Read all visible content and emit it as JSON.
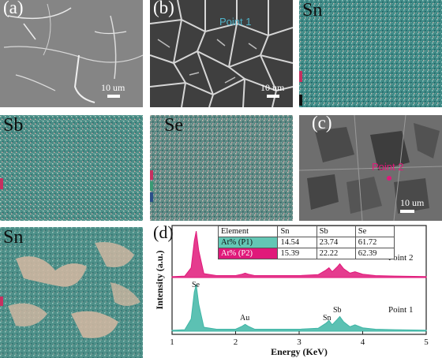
{
  "panels": {
    "a": {
      "label": "(a)",
      "scale": "10 um"
    },
    "b": {
      "label": "(b)",
      "scale": "10 um",
      "point_label": "Point 1"
    },
    "sn_top": {
      "label": "Sn"
    },
    "sb": {
      "label": "Sb"
    },
    "se": {
      "label": "Se"
    },
    "c": {
      "label": "(c)",
      "scale": "10 um",
      "point_label": "Point 2"
    },
    "sn_bottom": {
      "label": "Sn"
    }
  },
  "table": {
    "headers": [
      "Element",
      "Sn",
      "Sb",
      "Se"
    ],
    "rows": [
      {
        "name": "At% (P1)",
        "values": [
          "14.54",
          "23.74",
          "61.72"
        ]
      },
      {
        "name": "At% (P2)",
        "values": [
          "15.39",
          "22.22",
          "62.39"
        ]
      }
    ]
  },
  "colors": {
    "map_base": "#3f8a86",
    "map_sn_bottom_base": "#4d8f88",
    "point1": "#3fb6a6",
    "point2": "#e0197a",
    "sem_gray": "#7a7a7a"
  },
  "chart_data": {
    "type": "line",
    "label": "(d)",
    "xlabel": "Energy (KeV)",
    "ylabel": "Intensity (a.u.)",
    "xlim": [
      1,
      5
    ],
    "xticks": [
      1,
      2,
      3,
      4,
      5
    ],
    "series": [
      {
        "name": "Point 2",
        "color": "#e0197a",
        "x": [
          1.0,
          1.2,
          1.3,
          1.35,
          1.38,
          1.42,
          1.5,
          1.7,
          2.0,
          2.1,
          2.15,
          2.2,
          2.3,
          2.6,
          3.0,
          3.3,
          3.42,
          3.47,
          3.52,
          3.6,
          3.64,
          3.7,
          3.8,
          3.88,
          4.0,
          4.2,
          4.5,
          5.0
        ],
        "y": [
          0.02,
          0.03,
          0.2,
          0.75,
          0.95,
          0.55,
          0.08,
          0.04,
          0.04,
          0.07,
          0.09,
          0.07,
          0.04,
          0.04,
          0.04,
          0.06,
          0.15,
          0.2,
          0.12,
          0.22,
          0.28,
          0.18,
          0.09,
          0.12,
          0.07,
          0.04,
          0.03,
          0.02
        ]
      },
      {
        "name": "Point 1",
        "color": "#3fb6a6",
        "annotations": [
          "Se",
          "Au",
          "Sn",
          "Sb"
        ],
        "x": [
          1.0,
          1.2,
          1.3,
          1.35,
          1.38,
          1.42,
          1.5,
          1.7,
          2.0,
          2.1,
          2.15,
          2.2,
          2.3,
          2.6,
          3.0,
          3.3,
          3.42,
          3.47,
          3.52,
          3.6,
          3.64,
          3.7,
          3.8,
          3.88,
          4.0,
          4.2,
          4.5,
          5.0
        ],
        "y": [
          0.02,
          0.03,
          0.25,
          0.8,
          0.95,
          0.55,
          0.08,
          0.04,
          0.04,
          0.1,
          0.14,
          0.1,
          0.04,
          0.04,
          0.04,
          0.06,
          0.16,
          0.22,
          0.13,
          0.24,
          0.3,
          0.19,
          0.09,
          0.13,
          0.07,
          0.04,
          0.03,
          0.02
        ]
      }
    ]
  }
}
